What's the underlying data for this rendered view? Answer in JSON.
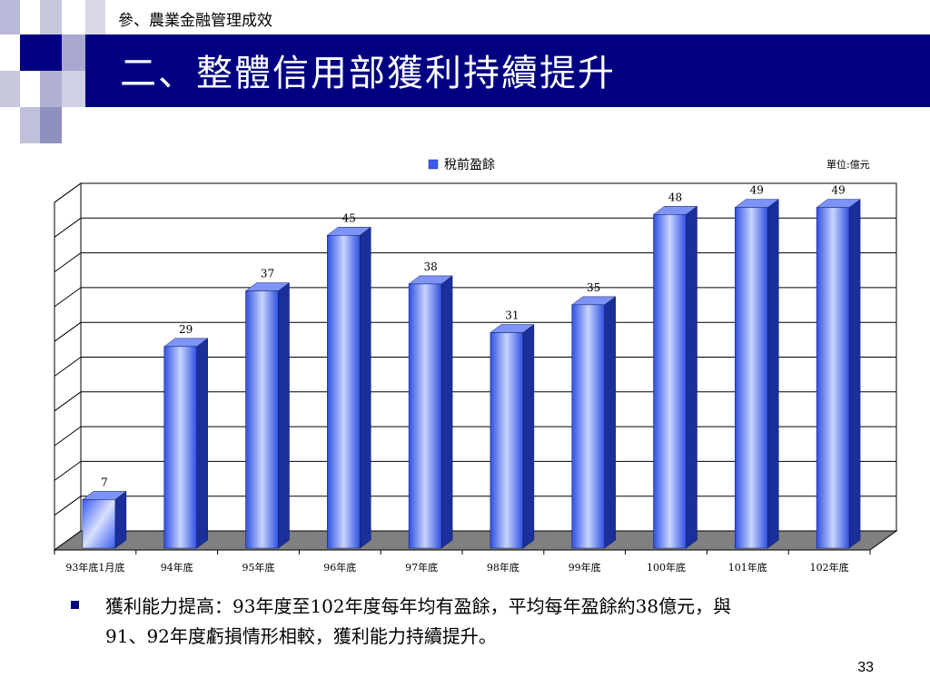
{
  "header": {
    "section": "參、農業金融管理成效",
    "title": "二、整體信用部獲利持續提升"
  },
  "chart_data": {
    "type": "bar",
    "categories": [
      "93年底1月底",
      "94年底",
      "95年底",
      "96年底",
      "97年底",
      "98年底",
      "99年底",
      "100年底",
      "101年底",
      "102年底"
    ],
    "series": [
      {
        "name": "稅前盈餘",
        "values": [
          7,
          29,
          37,
          45,
          38,
          31,
          35,
          48,
          49,
          49
        ]
      }
    ],
    "unit_label": "單位:億元",
    "legend_position": "top-center",
    "grid": true,
    "ylim": [
      0,
      50
    ],
    "colors": {
      "bar": "#3355ee",
      "bar_light": "#c8d4ff",
      "floor": "#808080"
    }
  },
  "bullet": {
    "line1": "獲利能力提高：93年度至102年度每年均有盈餘，平均每年盈餘約38億元，與",
    "line2": "91、92年度虧損情形相較，獲利能力持續提升。"
  },
  "page_number": "33"
}
